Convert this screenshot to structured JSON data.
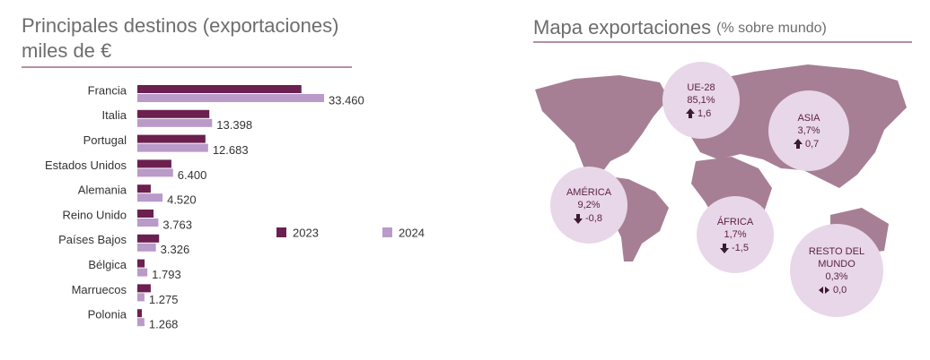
{
  "chart_data": {
    "type": "bar",
    "orientation": "horizontal",
    "title": "Principales destinos  (exportaciones)",
    "subtitle": "miles de €",
    "categories": [
      "Francia",
      "Italia",
      "Portugal",
      "Estados Unidos",
      "Alemania",
      "Reino Unido",
      "Países Bajos",
      "Bélgica",
      "Marruecos",
      "Polonia"
    ],
    "series": [
      {
        "name": "2023",
        "color": "#6b2050",
        "values": [
          29400,
          12900,
          12200,
          6100,
          2400,
          2900,
          3900,
          1300,
          2400,
          800
        ]
      },
      {
        "name": "2024",
        "color": "#b99ac9",
        "values": [
          33460,
          13398,
          12683,
          6400,
          4520,
          3763,
          3326,
          1793,
          1275,
          1268
        ],
        "value_labels": [
          "33.460",
          "13.398",
          "12.683",
          "6.400",
          "4.520",
          "3.763",
          "3.326",
          "1.793",
          "1.275",
          "1.268"
        ]
      }
    ],
    "legend": "right"
  },
  "map": {
    "title": "Mapa exportaciones",
    "subtitle": "(% sobre mundo)",
    "regions": [
      {
        "name": [
          "UE-28"
        ],
        "share": "85,1%",
        "change": "1,6",
        "trend": "up"
      },
      {
        "name": [
          "ASIA"
        ],
        "share": "3,7%",
        "change": "0,7",
        "trend": "up"
      },
      {
        "name": [
          "AMÉRICA"
        ],
        "share": "9,2%",
        "change": "-0,8",
        "trend": "down"
      },
      {
        "name": [
          "ÁFRICA"
        ],
        "share": "1,7%",
        "change": "-1,5",
        "trend": "down"
      },
      {
        "name": [
          "RESTO DEL",
          "MUNDO"
        ],
        "share": "0,3%",
        "change": "0,0",
        "trend": "flat"
      }
    ]
  }
}
